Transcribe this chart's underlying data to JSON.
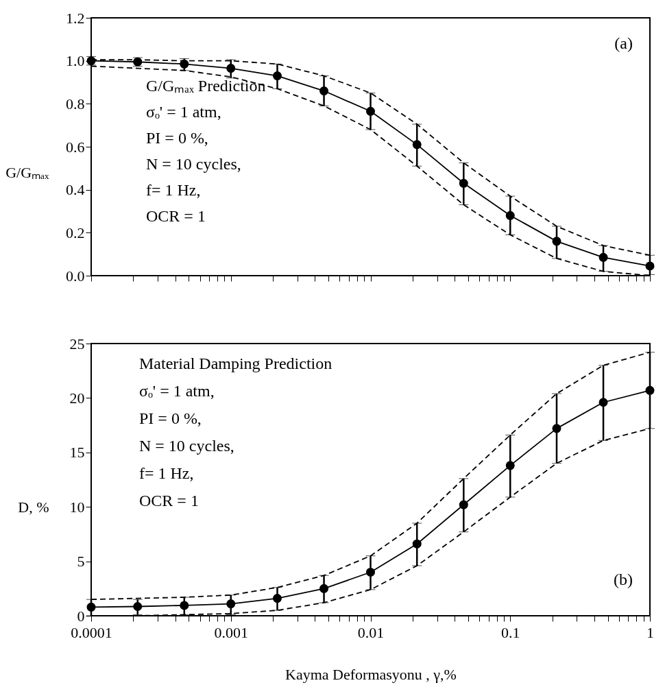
{
  "chart_data": [
    {
      "type": "line",
      "ylabel": "G/Gₘₐₓ",
      "log": "x",
      "grid": false,
      "tick_labels": "y",
      "annotations": [
        "G/Gₘₐₓ Prediction",
        "σₒ' = 1 atm,",
        "PI = 0 %,",
        "N = 10 cycles,",
        "f= 1 Hz,",
        "OCR = 1",
        "(a)"
      ],
      "x": [
        0.0001,
        0.000215,
        0.000464,
        0.001,
        0.00215,
        0.00464,
        0.01,
        0.0215,
        0.0464,
        0.1,
        0.215,
        0.464,
        1
      ],
      "xlim": [
        0.0001,
        1
      ],
      "xticks": [
        0.0001,
        {
          "value": 0.0002,
          "label": null
        },
        {
          "value": 0.0003,
          "label": null
        },
        {
          "value": 0.0004,
          "label": null
        },
        {
          "value": 0.0005,
          "label": null
        },
        {
          "value": 0.0006,
          "label": null
        },
        {
          "value": 0.0007,
          "label": null
        },
        {
          "value": 0.0008,
          "label": null
        },
        {
          "value": 0.0009,
          "label": null
        },
        0.001,
        {
          "value": 0.002,
          "label": null
        },
        {
          "value": 0.003,
          "label": null
        },
        {
          "value": 0.004,
          "label": null
        },
        {
          "value": 0.005,
          "label": null
        },
        {
          "value": 0.006,
          "label": null
        },
        {
          "value": 0.007,
          "label": null
        },
        {
          "value": 0.008,
          "label": null
        },
        {
          "value": 0.009,
          "label": null
        },
        0.01,
        {
          "value": 0.02,
          "label": null
        },
        {
          "value": 0.03,
          "label": null
        },
        {
          "value": 0.04,
          "label": null
        },
        {
          "value": 0.05,
          "label": null
        },
        {
          "value": 0.06,
          "label": null
        },
        {
          "value": 0.07,
          "label": null
        },
        {
          "value": 0.08,
          "label": null
        },
        {
          "value": 0.09,
          "label": null
        },
        0.1,
        {
          "value": 0.2,
          "label": null
        },
        {
          "value": 0.3,
          "label": null
        },
        {
          "value": 0.4,
          "label": null
        },
        {
          "value": 0.5,
          "label": null
        },
        {
          "value": 0.6,
          "label": null
        },
        {
          "value": 0.7,
          "label": null
        },
        {
          "value": 0.8,
          "label": null
        },
        {
          "value": 0.9,
          "label": null
        },
        1
      ],
      "ylim": [
        0,
        1.2
      ],
      "yticks": [
        {
          "value": 0,
          "label": "0.0"
        },
        {
          "value": 0.2,
          "label": "0.2"
        },
        {
          "value": 0.4,
          "label": "0.4"
        },
        {
          "value": 0.6,
          "label": "0.6"
        },
        {
          "value": 0.8,
          "label": "0.8"
        },
        {
          "value": 1,
          "label": "1.0"
        },
        {
          "value": 1.2,
          "label": "1.2"
        }
      ],
      "series": [
        {
          "color": "#000000",
          "marker": "circle",
          "line_style": "solid",
          "values": [
            1.0,
            0.995,
            0.985,
            0.965,
            0.93,
            0.86,
            0.765,
            0.61,
            0.43,
            0.28,
            0.16,
            0.085,
            0.045
          ],
          "errors": [
            [
              0.98,
              1.02
            ],
            [
              0.975,
              1.015
            ],
            [
              0.955,
              1.01
            ],
            [
              0.92,
              1.005
            ],
            [
              0.87,
              0.985
            ],
            [
              0.79,
              0.93
            ],
            [
              0.68,
              0.85
            ],
            [
              0.51,
              0.705
            ],
            [
              0.33,
              0.525
            ],
            [
              0.19,
              0.37
            ],
            [
              0.08,
              0.23
            ],
            [
              0.02,
              0.14
            ],
            [
              0.005,
              0.095
            ]
          ]
        },
        {
          "color": "#000000",
          "marker": "none",
          "line_style": "dashed",
          "values": [
            1.005,
            1.005,
            1.0,
            1.0,
            0.985,
            0.93,
            0.85,
            0.705,
            0.525,
            0.37,
            0.23,
            0.14,
            0.095
          ]
        },
        {
          "color": "#000000",
          "marker": "none",
          "line_style": "dashed",
          "values": [
            0.975,
            0.965,
            0.955,
            0.925,
            0.87,
            0.79,
            0.68,
            0.51,
            0.33,
            0.19,
            0.08,
            0.02,
            0.0
          ]
        }
      ]
    },
    {
      "type": "line",
      "ylabel": "D, %",
      "xlabel": "Kayma Deformasyonu  , γ,%",
      "log": "x",
      "grid": false,
      "annotations": [
        "Material Damping Prediction",
        "σₒ' = 1 atm,",
        "PI = 0 %,",
        "N = 10 cycles,",
        "f= 1 Hz,",
        "OCR = 1",
        "(b)"
      ],
      "x": [
        0.0001,
        0.000215,
        0.000464,
        0.001,
        0.00215,
        0.00464,
        0.01,
        0.0215,
        0.0464,
        0.1,
        0.215,
        0.464,
        1
      ],
      "xlim": [
        0.0001,
        1
      ],
      "xticks": [
        0.0001,
        {
          "value": 0.0002,
          "label": null
        },
        {
          "value": 0.0003,
          "label": null
        },
        {
          "value": 0.0004,
          "label": null
        },
        {
          "value": 0.0005,
          "label": null
        },
        {
          "value": 0.0006,
          "label": null
        },
        {
          "value": 0.0007,
          "label": null
        },
        {
          "value": 0.0008,
          "label": null
        },
        {
          "value": 0.0009,
          "label": null
        },
        0.001,
        {
          "value": 0.002,
          "label": null
        },
        {
          "value": 0.003,
          "label": null
        },
        {
          "value": 0.004,
          "label": null
        },
        {
          "value": 0.005,
          "label": null
        },
        {
          "value": 0.006,
          "label": null
        },
        {
          "value": 0.007,
          "label": null
        },
        {
          "value": 0.008,
          "label": null
        },
        {
          "value": 0.009,
          "label": null
        },
        0.01,
        {
          "value": 0.02,
          "label": null
        },
        {
          "value": 0.03,
          "label": null
        },
        {
          "value": 0.04,
          "label": null
        },
        {
          "value": 0.05,
          "label": null
        },
        {
          "value": 0.06,
          "label": null
        },
        {
          "value": 0.07,
          "label": null
        },
        {
          "value": 0.08,
          "label": null
        },
        {
          "value": 0.09,
          "label": null
        },
        0.1,
        {
          "value": 0.2,
          "label": null
        },
        {
          "value": 0.3,
          "label": null
        },
        {
          "value": 0.4,
          "label": null
        },
        {
          "value": 0.5,
          "label": null
        },
        {
          "value": 0.6,
          "label": null
        },
        {
          "value": 0.7,
          "label": null
        },
        {
          "value": 0.8,
          "label": null
        },
        {
          "value": 0.9,
          "label": null
        },
        1
      ],
      "ylim": [
        0,
        25
      ],
      "yticks": [
        0,
        5,
        10,
        15,
        20,
        25
      ],
      "series": [
        {
          "color": "#000000",
          "marker": "circle",
          "line_style": "solid",
          "values": [
            0.8,
            0.85,
            0.95,
            1.1,
            1.6,
            2.5,
            4.0,
            6.6,
            10.2,
            13.8,
            17.2,
            19.6,
            20.7
          ],
          "errors": [
            [
              0.0,
              1.5
            ],
            [
              0.1,
              1.5
            ],
            [
              0.1,
              1.7
            ],
            [
              0.1,
              1.9
            ],
            [
              0.5,
              2.6
            ],
            [
              1.2,
              3.7
            ],
            [
              2.4,
              5.5
            ],
            [
              4.6,
              8.5
            ],
            [
              7.7,
              12.6
            ],
            [
              10.9,
              16.6
            ],
            [
              14.0,
              20.4
            ],
            [
              16.1,
              23.0
            ],
            [
              17.2,
              24.2
            ]
          ]
        },
        {
          "color": "#000000",
          "marker": "none",
          "line_style": "dashed",
          "values": [
            1.5,
            1.6,
            1.7,
            1.9,
            2.6,
            3.7,
            5.5,
            8.5,
            12.6,
            16.6,
            20.4,
            23.0,
            24.2
          ]
        },
        {
          "color": "#000000",
          "marker": "none",
          "line_style": "dashed",
          "values": [
            0.0,
            0.0,
            0.1,
            0.2,
            0.5,
            1.2,
            2.4,
            4.6,
            7.7,
            10.9,
            14.0,
            16.1,
            17.2
          ]
        }
      ]
    }
  ]
}
